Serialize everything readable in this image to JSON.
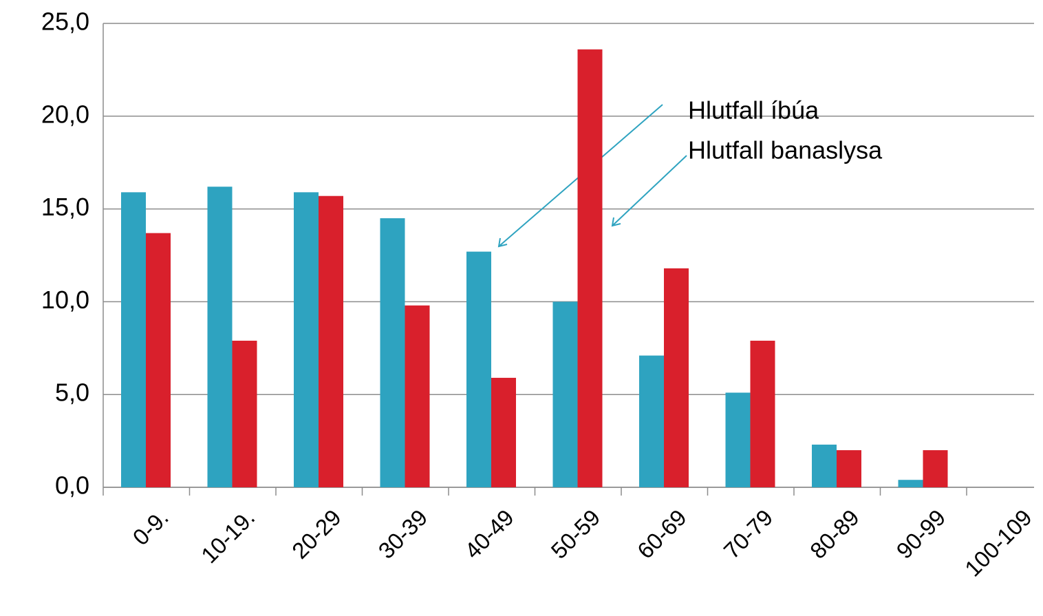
{
  "chart_data": {
    "type": "bar",
    "categories": [
      "0-9.",
      "10-19.",
      "20-29",
      "30-39",
      "40-49",
      "50-59",
      "60-69",
      "70-79",
      "80-89",
      "90-99",
      "100-109"
    ],
    "series": [
      {
        "name": "Hlutfall íbúa",
        "color": "#2ea3c0",
        "values": [
          15.9,
          16.2,
          15.9,
          14.5,
          12.7,
          10.0,
          7.1,
          5.1,
          2.3,
          0.4,
          0
        ]
      },
      {
        "name": "Hlutfall banaslysa",
        "color": "#d9202c",
        "values": [
          13.7,
          7.9,
          15.7,
          9.8,
          5.9,
          23.6,
          11.8,
          7.9,
          2.0,
          2.0,
          0
        ]
      }
    ],
    "ylim": [
      0,
      25
    ],
    "yticks": [
      {
        "value": 0,
        "label": "0,0"
      },
      {
        "value": 5,
        "label": "5,0"
      },
      {
        "value": 10,
        "label": "10,0"
      },
      {
        "value": 15,
        "label": "15,0"
      },
      {
        "value": 20,
        "label": "20,0"
      },
      {
        "value": 25,
        "label": "25,0"
      }
    ],
    "grid": true
  }
}
